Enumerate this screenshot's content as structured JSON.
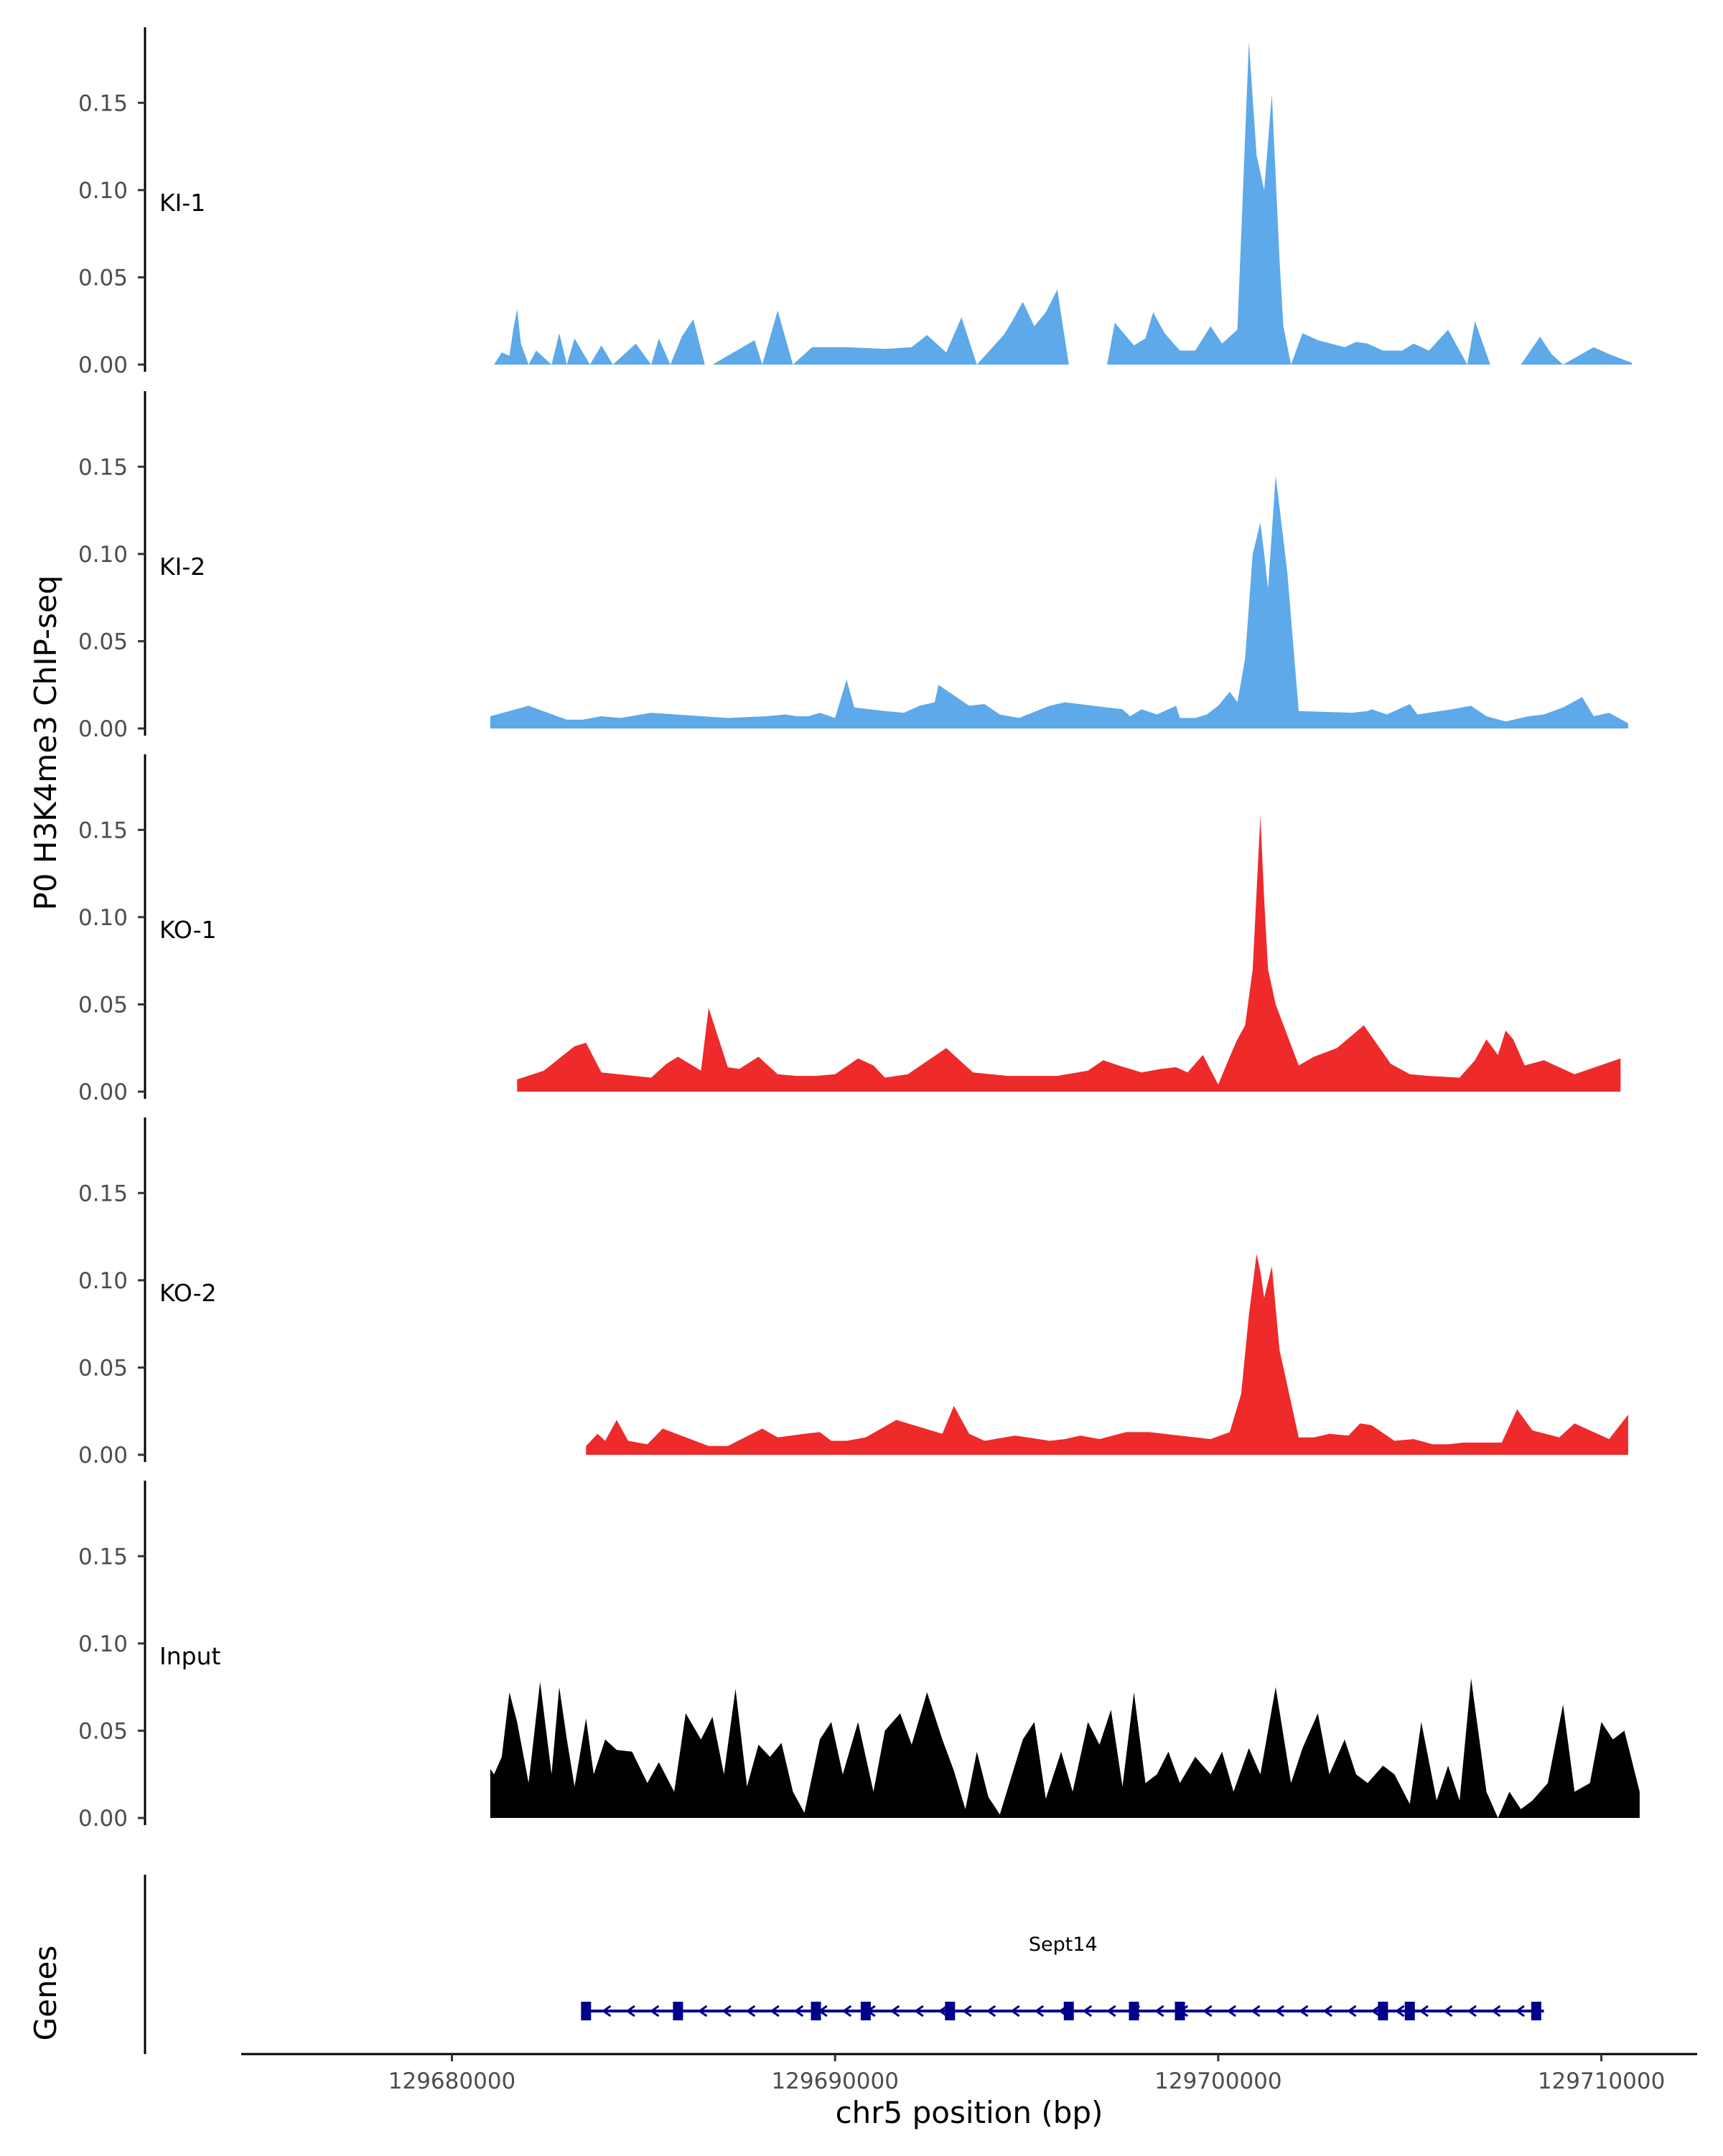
{
  "chart_data": {
    "type": "area",
    "y_axis_title": "P0 H3K4me3 ChIP-seq",
    "x_axis_title": "chr5 position (bp)",
    "xlim": [
      129674500,
      129712500
    ],
    "x_ticks": [
      129680000,
      129690000,
      129700000,
      129710000
    ],
    "x_tick_labels": [
      "129680000",
      "129690000",
      "129700000",
      "129710000"
    ],
    "ylim": [
      0,
      0.19
    ],
    "y_ticks": [
      0,
      0.05,
      0.1,
      0.15
    ],
    "y_tick_labels": [
      "0.00",
      "0.05",
      "0.10",
      "0.15"
    ],
    "grid": false,
    "series": [
      {
        "name": "KI-1",
        "color": "#5DA9E9",
        "x": [
          129681100,
          129681300,
          129681500,
          129681600,
          129681700,
          129681800,
          129682000,
          129682200,
          129682600,
          129682800,
          129683000,
          129683200,
          129683600,
          129683900,
          129684200,
          129684800,
          129685200,
          129685400,
          129685700,
          129686000,
          129686300,
          129686600,
          129686800,
          129687900,
          129688100,
          129688500,
          129688900,
          129689400,
          129690300,
          129691300,
          129692000,
          129692400,
          129692900,
          129693300,
          129693700,
          129694400,
          129694600,
          129694900,
          129695200,
          129695500,
          129695800,
          129696100,
          129697100,
          129697300,
          129697800,
          129698100,
          129698300,
          129698600,
          129699000,
          129699400,
          129699800,
          129700100,
          129700500,
          129700700,
          129700800,
          129701000,
          129701200,
          129701400,
          129701600,
          129701700,
          129701900,
          129702200,
          129702600,
          129703300,
          129703600,
          129703900,
          129704300,
          129704800,
          129705100,
          129705500,
          129706000,
          129706500,
          129706700,
          129707100,
          129707900,
          129708400,
          129708700,
          129709000,
          129709800,
          129710200,
          129710800
        ],
        "y": [
          0,
          0.007,
          0.005,
          0.02,
          0.032,
          0.012,
          0,
          0.008,
          0,
          0.018,
          0,
          0.015,
          0,
          0.011,
          0,
          0.012,
          0,
          0.015,
          0,
          0.016,
          0.026,
          0,
          0,
          0.014,
          0,
          0.031,
          0,
          0.01,
          0.01,
          0.009,
          0.01,
          0.017,
          0.007,
          0.027,
          0,
          0.017,
          0.024,
          0.036,
          0.022,
          0.03,
          0.043,
          0,
          0,
          0.024,
          0.011,
          0.015,
          0.03,
          0.018,
          0.008,
          0.008,
          0.022,
          0.012,
          0.02,
          0.13,
          0.185,
          0.12,
          0.1,
          0.155,
          0.06,
          0.022,
          0,
          0.018,
          0.014,
          0.01,
          0.013,
          0.012,
          0.008,
          0.008,
          0.012,
          0.008,
          0.02,
          0,
          0.025,
          0,
          0,
          0.016,
          0.006,
          0,
          0.01,
          0.006,
          0.001
        ]
      },
      {
        "name": "KI-2",
        "color": "#5DA9E9",
        "x": [
          129681000,
          129682000,
          129683000,
          129683400,
          129683900,
          129684400,
          129685200,
          129687200,
          129688200,
          129688700,
          129689000,
          129689300,
          129689600,
          129690000,
          129690300,
          129690500,
          129691300,
          129691800,
          129692200,
          129692600,
          129692700,
          129693500,
          129693900,
          129694300,
          129694800,
          129695600,
          129696000,
          129697100,
          129697500,
          129697700,
          129698000,
          129698400,
          129698900,
          129699000,
          129699400,
          129699700,
          129700000,
          129700300,
          129700500,
          129700700,
          129700900,
          129701100,
          129701200,
          129701300,
          129701500,
          129701800,
          129702100,
          129703500,
          129703900,
          129704000,
          129704400,
          129705000,
          129705200,
          129706100,
          129706600,
          129707000,
          129707500,
          129708100,
          129708500,
          129709000,
          129709500,
          129709800,
          129710200,
          129710700
        ],
        "y": [
          0.007,
          0.013,
          0.005,
          0.005,
          0.007,
          0.006,
          0.009,
          0.006,
          0.007,
          0.008,
          0.007,
          0.007,
          0.009,
          0.006,
          0.028,
          0.012,
          0.01,
          0.009,
          0.013,
          0.015,
          0.025,
          0.013,
          0.014,
          0.008,
          0.006,
          0.013,
          0.015,
          0.012,
          0.011,
          0.007,
          0.011,
          0.008,
          0.013,
          0.006,
          0.006,
          0.008,
          0.013,
          0.021,
          0.015,
          0.04,
          0.1,
          0.118,
          0.1,
          0.08,
          0.145,
          0.09,
          0.01,
          0.009,
          0.01,
          0.011,
          0.008,
          0.014,
          0.008,
          0.011,
          0.013,
          0.007,
          0.004,
          0.007,
          0.008,
          0.012,
          0.018,
          0.007,
          0.009,
          0.003
        ]
      },
      {
        "name": "KO-1",
        "color": "#EE2A2A",
        "x": [
          129681700,
          129682400,
          129683200,
          129683500,
          129683900,
          129685200,
          129685600,
          129685900,
          129686500,
          129686700,
          129687200,
          129687500,
          129688000,
          129688500,
          129689000,
          129689500,
          129690000,
          129690600,
          129691000,
          129691300,
          129691900,
          129692900,
          129693600,
          129694500,
          129695800,
          129696600,
          129697000,
          129697400,
          129698000,
          129698500,
          129698900,
          129699200,
          129699600,
          129700000,
          129700300,
          129700500,
          129700700,
          129700900,
          129701100,
          129701200,
          129701300,
          129701500,
          129702100,
          129702500,
          129703100,
          129703800,
          129704500,
          129705000,
          129705500,
          129706300,
          129706700,
          129707000,
          129707300,
          129707500,
          129707700,
          129708000,
          129708500,
          129709300,
          129710500
        ],
        "y": [
          0.007,
          0.012,
          0.026,
          0.028,
          0.011,
          0.008,
          0.016,
          0.02,
          0.012,
          0.048,
          0.014,
          0.013,
          0.02,
          0.01,
          0.009,
          0.009,
          0.01,
          0.019,
          0.015,
          0.008,
          0.01,
          0.025,
          0.011,
          0.009,
          0.009,
          0.012,
          0.018,
          0.015,
          0.011,
          0.013,
          0.014,
          0.011,
          0.021,
          0.004,
          0.02,
          0.03,
          0.038,
          0.07,
          0.158,
          0.11,
          0.07,
          0.05,
          0.015,
          0.02,
          0.025,
          0.038,
          0.016,
          0.01,
          0.009,
          0.008,
          0.018,
          0.03,
          0.021,
          0.035,
          0.03,
          0.015,
          0.018,
          0.01,
          0.019
        ]
      },
      {
        "name": "KO-2",
        "color": "#EE2A2A",
        "x": [
          129683500,
          129683800,
          129684000,
          129684300,
          129684600,
          129685100,
          129685500,
          129686700,
          129687200,
          129688100,
          129688500,
          129689200,
          129689600,
          129689900,
          129690300,
          129690800,
          129691600,
          129692800,
          129693100,
          129693500,
          129693900,
          129694700,
          129695600,
          129696000,
          129696400,
          129696900,
          129697600,
          129698200,
          129699800,
          129700300,
          129700600,
          129700800,
          129701000,
          129701100,
          129701200,
          129701400,
          129701600,
          129702100,
          129702500,
          129702900,
          129703400,
          129703700,
          129704000,
          129704600,
          129705100,
          129705600,
          129706000,
          129706400,
          129706900,
          129707400,
          129707800,
          129708200,
          129708900,
          129709300,
          129710200,
          129710700
        ],
        "y": [
          0.005,
          0.012,
          0.008,
          0.02,
          0.008,
          0.006,
          0.015,
          0.005,
          0.005,
          0.015,
          0.01,
          0.012,
          0.013,
          0.008,
          0.008,
          0.01,
          0.02,
          0.012,
          0.028,
          0.012,
          0.008,
          0.011,
          0.008,
          0.009,
          0.011,
          0.009,
          0.013,
          0.013,
          0.009,
          0.013,
          0.035,
          0.08,
          0.115,
          0.105,
          0.09,
          0.108,
          0.06,
          0.01,
          0.01,
          0.012,
          0.011,
          0.018,
          0.017,
          0.008,
          0.009,
          0.006,
          0.006,
          0.007,
          0.007,
          0.007,
          0.026,
          0.014,
          0.01,
          0.018,
          0.009,
          0.023
        ]
      },
      {
        "name": "Input",
        "color": "#000000",
        "x": [
          129681000,
          129681100,
          129681300,
          129681500,
          129681700,
          129682000,
          129682300,
          129682600,
          129682800,
          129683000,
          129683200,
          129683500,
          129683700,
          129684000,
          129684300,
          129684700,
          129685100,
          129685400,
          129685800,
          129686100,
          129686500,
          129686800,
          129687100,
          129687400,
          129687700,
          129688000,
          129688300,
          129688600,
          129688900,
          129689200,
          129689600,
          129689900,
          129690200,
          129690600,
          129691000,
          129691300,
          129691700,
          129692000,
          129692400,
          129692800,
          129693100,
          129693400,
          129693700,
          129694000,
          129694300,
          129694900,
          129695200,
          129695500,
          129695900,
          129696200,
          129696600,
          129696900,
          129697200,
          129697500,
          129697800,
          129698100,
          129698400,
          129698700,
          129699000,
          129699400,
          129699800,
          129700100,
          129700400,
          129700800,
          129701100,
          129701500,
          129701900,
          129702200,
          129702600,
          129702900,
          129703300,
          129703600,
          129703900,
          129704300,
          129704600,
          129705000,
          129705300,
          129705700,
          129706000,
          129706300,
          129706600,
          129707000,
          129707300,
          129707600,
          129707900,
          129708200,
          129708600,
          129709000,
          129709300,
          129709700,
          129710000,
          129710300,
          129710600,
          129711000
        ],
        "y": [
          0.028,
          0.025,
          0.035,
          0.072,
          0.055,
          0.02,
          0.078,
          0.025,
          0.075,
          0.045,
          0.018,
          0.057,
          0.025,
          0.045,
          0.039,
          0.038,
          0.02,
          0.032,
          0.015,
          0.06,
          0.045,
          0.058,
          0.025,
          0.074,
          0.018,
          0.042,
          0.035,
          0.043,
          0.015,
          0.003,
          0.045,
          0.055,
          0.025,
          0.055,
          0.015,
          0.05,
          0.06,
          0.042,
          0.072,
          0.045,
          0.027,
          0.005,
          0.038,
          0.012,
          0.002,
          0.045,
          0.055,
          0.011,
          0.038,
          0.015,
          0.055,
          0.042,
          0.062,
          0.018,
          0.072,
          0.02,
          0.025,
          0.038,
          0.02,
          0.035,
          0.025,
          0.038,
          0.015,
          0.04,
          0.025,
          0.075,
          0.02,
          0.04,
          0.06,
          0.025,
          0.045,
          0.025,
          0.02,
          0.03,
          0.025,
          0.008,
          0.055,
          0.01,
          0.03,
          0.01,
          0.08,
          0.015,
          0.0,
          0.015,
          0.005,
          0.01,
          0.02,
          0.065,
          0.015,
          0.02,
          0.055,
          0.045,
          0.05,
          0.015
        ]
      }
    ],
    "genes_track": {
      "title": "Genes",
      "gene_name": "Sept14",
      "strand": "-",
      "start": 129683400,
      "end": 129708500,
      "color": "#00008B",
      "exons": [
        129683500,
        129685900,
        129689500,
        129690800,
        129693000,
        129696100,
        129697800,
        129699000,
        129704300,
        129705000,
        129708300
      ]
    }
  }
}
